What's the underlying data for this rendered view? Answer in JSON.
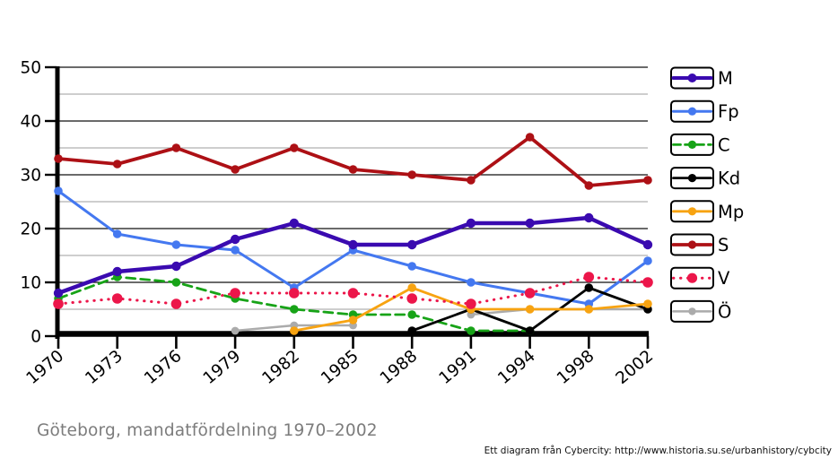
{
  "title": "Göteborg, mandatfördelning 1970–2002",
  "footer": "Ett diagram från Cybercity: http://www.historia.su.se/urbanhistory/cybcity",
  "chart_data": {
    "type": "line",
    "title": "Göteborg, mandatfördelning 1970–2002",
    "xlabel": "",
    "ylabel": "",
    "categories": [
      "1970",
      "1973",
      "1976",
      "1979",
      "1982",
      "1985",
      "1988",
      "1991",
      "1994",
      "1998",
      "2002"
    ],
    "ylim": [
      0,
      50
    ],
    "yticks_major": [
      0,
      10,
      20,
      30,
      40,
      50
    ],
    "yticks_minor": [
      5,
      15,
      25,
      35,
      45
    ],
    "grid": true,
    "legend_position": "right",
    "series": [
      {
        "name": "M",
        "color": "#3A0AB0",
        "style": "solid",
        "width": 4.5,
        "values": [
          8,
          12,
          13,
          18,
          21,
          17,
          17,
          21,
          21,
          22,
          17
        ]
      },
      {
        "name": "Fp",
        "color": "#4478F0",
        "style": "solid",
        "width": 3.0,
        "values": [
          27,
          19,
          17,
          16,
          9,
          16,
          13,
          10,
          8,
          6,
          14
        ]
      },
      {
        "name": "C",
        "color": "#17A317",
        "style": "dashed",
        "width": 2.8,
        "values": [
          7,
          11,
          10,
          7,
          5,
          4,
          4,
          1,
          1,
          null,
          null
        ]
      },
      {
        "name": "Kd",
        "color": "#000000",
        "style": "solid",
        "width": 2.8,
        "values": [
          null,
          null,
          null,
          null,
          null,
          null,
          1,
          5,
          1,
          9,
          5
        ]
      },
      {
        "name": "Mp",
        "color": "#F7A311",
        "style": "solid",
        "width": 2.8,
        "values": [
          null,
          null,
          null,
          null,
          1,
          3,
          9,
          5,
          5,
          5,
          6
        ]
      },
      {
        "name": "S",
        "color": "#AD1015",
        "style": "solid",
        "width": 3.8,
        "values": [
          33,
          32,
          35,
          31,
          35,
          31,
          30,
          29,
          37,
          28,
          29
        ]
      },
      {
        "name": "V",
        "color": "#EC164A",
        "style": "dotted",
        "width": 3.0,
        "values": [
          6,
          7,
          6,
          8,
          8,
          8,
          7,
          6,
          8,
          11,
          10
        ]
      },
      {
        "name": "Ö",
        "color": "#ABABAB",
        "style": "solid",
        "width": 2.5,
        "values": [
          null,
          null,
          null,
          1,
          2,
          2,
          null,
          4,
          5,
          5,
          5
        ]
      }
    ]
  }
}
